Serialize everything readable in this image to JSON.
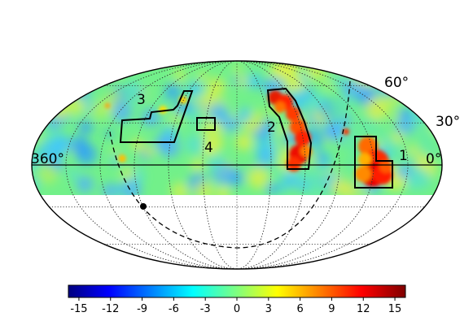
{
  "map": {
    "projection": "mollweide",
    "longitude_labels": {
      "left": "360°",
      "right": "0°"
    },
    "latitude_labels": [
      {
        "value": 60,
        "text": "60°"
      },
      {
        "value": 30,
        "text": "30°"
      }
    ],
    "masked_region": "below equator (southern half shown blank)",
    "regions": [
      {
        "id": "1",
        "label": "1",
        "lon_range": [
          5,
          25
        ],
        "lat_range": [
          0,
          20
        ]
      },
      {
        "id": "2",
        "label": "2",
        "lon_range": [
          70,
          90
        ],
        "lat_range": [
          0,
          55
        ]
      },
      {
        "id": "3",
        "label": "3",
        "lon_range": [
          215,
          255
        ],
        "lat_range": [
          15,
          55
        ]
      },
      {
        "id": "4",
        "label": "4",
        "lon_range": [
          180,
          192
        ],
        "lat_range": [
          25,
          33
        ]
      }
    ],
    "marker": {
      "name": "pole-point",
      "lon": 232,
      "lat": -28
    },
    "dashed_circle": "great circle passing near equator through marker"
  },
  "colorbar": {
    "ticks": [
      "-15",
      "-12",
      "-9",
      "-6",
      "-3",
      "0",
      "3",
      "6",
      "9",
      "12",
      "15"
    ],
    "min": -16,
    "max": 16,
    "colormap": "jet",
    "colors": [
      "#00007f",
      "#0000ff",
      "#007fff",
      "#00ffff",
      "#7fff7f",
      "#ffff00",
      "#ff7f00",
      "#ff0000",
      "#7f0000"
    ]
  }
}
